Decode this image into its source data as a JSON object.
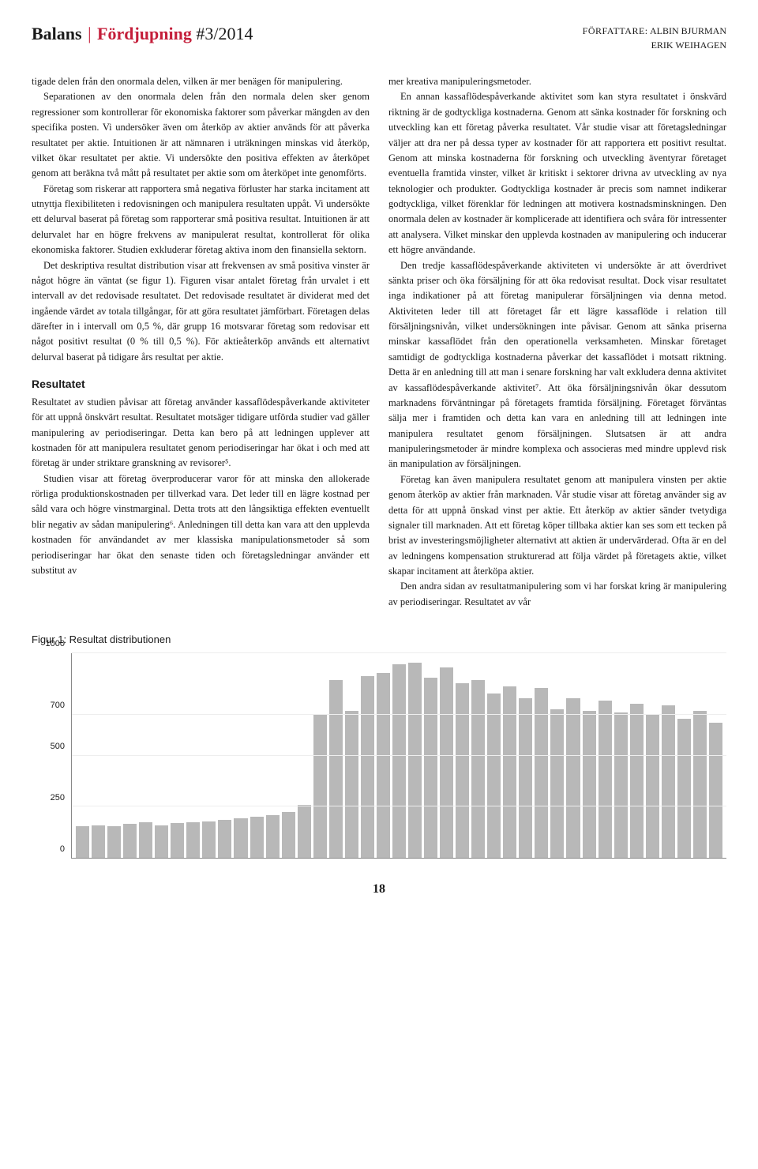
{
  "header": {
    "brand": "Balans",
    "section": "Fördjupning",
    "issue": "#3/2014",
    "author_label": "FÖRFATTARE:",
    "author1": "ALBIN BJURMAN",
    "author2": "ERIK WEIHAGEN"
  },
  "col1": {
    "p1": "tigade delen från den onormala delen, vilken är mer benägen för manipulering.",
    "p2": "Separationen av den onormala delen från den normala delen sker genom regressioner som kontrollerar för ekonomiska faktorer som påverkar mängden av den specifika posten. Vi undersöker även om återköp av aktier används för att påverka resultatet per aktie. Intuitionen är att nämnaren i uträkningen minskas vid återköp, vilket ökar resultatet per aktie. Vi undersökte den positiva effekten av återköpet genom att beräkna två mått på resultatet per aktie som om återköpet inte genomförts.",
    "p3": "Företag som riskerar att rapportera små negativa förluster har starka incitament att utnyttja flexibiliteten i redovisningen och manipulera resultaten uppåt. Vi undersökte ett delurval baserat på företag som rapporterar små positiva resultat. Intuitionen är att delurvalet har en högre frekvens av manipulerat resultat, kontrollerat för olika ekonomiska faktorer. Studien exkluderar företag aktiva inom den finansiella sektorn.",
    "p4": "Det deskriptiva resultat distribution visar att frekvensen av små positiva vinster är något högre än väntat (se figur 1). Figuren visar antalet företag från urvalet i ett intervall av det redovisade resultatet. Det redovisade resultatet är dividerat med det ingående värdet av totala tillgångar, för att göra resultatet jämförbart. Företagen delas därefter in i intervall om 0,5 %, där grupp 16 motsvarar företag som redovisar ett något positivt resultat (0 % till 0,5 %). För aktieåterköp används ett alternativt delurval baserat på tidigare års resultat per aktie.",
    "heading": "Resultatet",
    "p5": "Resultatet av studien påvisar att företag använder kassaflödespåverkande aktiviteter för att uppnå önskvärt resultat. Resultatet motsäger tidigare utförda studier vad gäller manipulering av periodiseringar. Detta kan bero på att ledningen upplever att kostnaden för att manipulera resultatet genom periodiseringar har ökat i och med att företag är under striktare granskning av revisorer⁵.",
    "p6": "Studien visar att företag överproducerar varor för att minska den allokerade rörliga produktionskostnaden per tillverkad vara. Det leder till en lägre kostnad per såld vara och högre vinstmarginal. Detta trots att den långsiktiga effekten eventuellt blir negativ av sådan manipulering⁶. Anledningen till detta kan vara att den upplevda kostnaden för användandet av mer klassiska manipulationsmetoder så som periodiseringar har ökat den senaste tiden och företagsledningar använder ett substitut av"
  },
  "col2": {
    "p1": "mer kreativa manipuleringsmetoder.",
    "p2": "En annan kassaflödespåverkande aktivitet som kan styra resultatet i önskvärd riktning är de godtyckliga kostnaderna. Genom att sänka kostnader för forskning och utveckling kan ett företag påverka resultatet. Vår studie visar att företagsledningar väljer att dra ner på dessa typer av kostnader för att rapportera ett positivt resultat. Genom att minska kostnaderna för forskning och utveckling äventyrar företaget eventuella framtida vinster, vilket är kritiskt i sektorer drivna av utveckling av nya teknologier och produkter. Godtyckliga kostnader är precis som namnet indikerar godtyckliga, vilket förenklar för ledningen att motivera kostnadsminskningen. Den onormala delen av kostnader är komplicerade att identifiera och svåra för intressenter att analysera. Vilket minskar den upplevda kostnaden av manipulering och inducerar ett högre användande.",
    "p3": "Den tredje kassaflödespåverkande aktiviteten vi undersökte är att överdrivet sänkta priser och öka försäljning för att öka redovisat resultat. Dock visar resultatet inga indikationer på att företag manipulerar försäljningen via denna metod. Aktiviteten leder till att företaget får ett lägre kassaflöde i relation till försäljningsnivån, vilket undersökningen inte påvisar. Genom att sänka priserna minskar kassaflödet från den operationella verksamheten. Minskar företaget samtidigt de godtyckliga kostnaderna påverkar det kassaflödet i motsatt riktning. Detta är en anledning till att man i senare forskning har valt exkludera denna aktivitet av kassaflödespåverkande aktivitet⁷. Att öka försäljningsnivån ökar dessutom marknadens förväntningar på företagets framtida försäljning. Företaget förväntas sälja mer i framtiden och detta kan vara en anledning till att ledningen inte manipulera resultatet genom försäljningen. Slutsatsen är att andra manipuleringsmetoder är mindre komplexa och associeras med mindre upplevd risk än manipulation av försäljningen.",
    "p4": "Företag kan även manipulera resultatet genom att manipulera vinsten per aktie genom återköp av aktier från marknaden. Vår studie visar att företag använder sig av detta för att uppnå önskad vinst per aktie. Ett återköp av aktier sänder tvetydiga signaler till marknaden. Att ett företag köper tillbaka aktier kan ses som ett tecken på brist av investeringsmöjligheter alternativt att aktien är undervärderad. Ofta är en del av ledningens kompensation strukturerad att följa värdet på företagets aktie, vilket skapar incitament att återköpa aktier.",
    "p5": "Den andra sidan av resultatmanipulering som vi har forskat kring är manipulering av periodiseringar. Resultatet av vår"
  },
  "figure": {
    "title": "Figur 1: Resultat distributionen",
    "type": "bar",
    "ylim": [
      0,
      1000
    ],
    "yticks": [
      0,
      250,
      500,
      700,
      1000
    ],
    "bar_color": "#b8b8b8",
    "background_color": "#ffffff",
    "grid_color": "#eeeeee",
    "axis_color": "#888888",
    "values": [
      155,
      160,
      155,
      165,
      175,
      160,
      170,
      175,
      180,
      185,
      195,
      200,
      210,
      225,
      260,
      700,
      870,
      720,
      890,
      905,
      945,
      955,
      880,
      930,
      855,
      870,
      805,
      840,
      780,
      830,
      725,
      780,
      720,
      770,
      710,
      755,
      700,
      745,
      680,
      720,
      660
    ]
  },
  "page_number": "18"
}
